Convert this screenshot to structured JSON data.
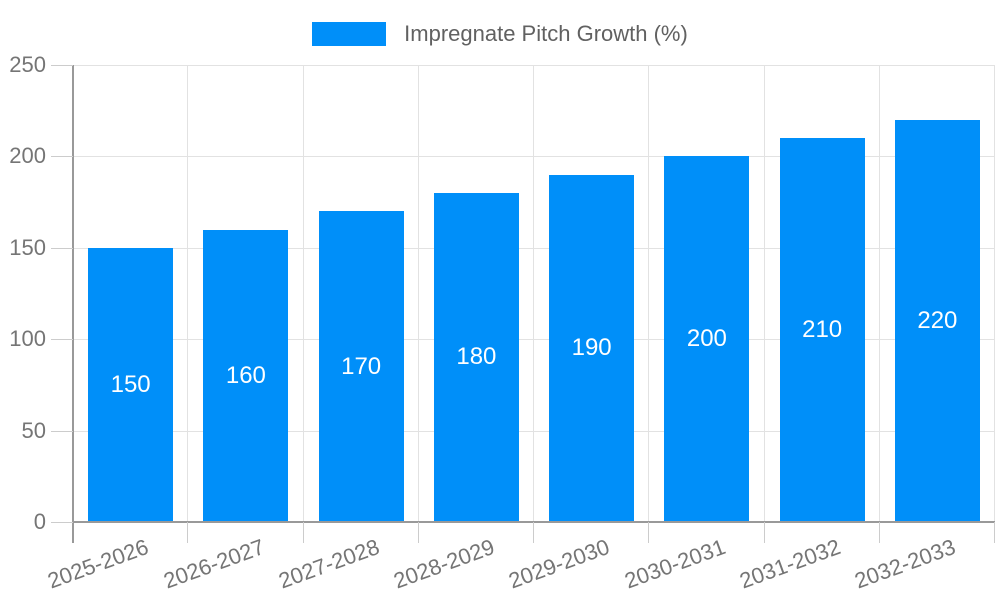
{
  "chart_data": {
    "type": "bar",
    "legend_label": "Impregnate Pitch Growth (%)",
    "categories": [
      "2025-2026",
      "2026-2027",
      "2027-2028",
      "2028-2029",
      "2029-2030",
      "2030-2031",
      "2031-2032",
      "2032-2033"
    ],
    "values": [
      150,
      160,
      170,
      180,
      190,
      200,
      210,
      220
    ],
    "value_labels": [
      "150",
      "160",
      "170",
      "180",
      "190",
      "200",
      "210",
      "220"
    ],
    "ylim": [
      0,
      250
    ],
    "yticks": [
      0,
      50,
      100,
      150,
      200,
      250
    ],
    "ytick_labels": [
      "0",
      "50",
      "100",
      "150",
      "200",
      "250"
    ],
    "grid": "on",
    "legend_position": "top-center",
    "xlabel": "",
    "ylabel": "",
    "title": "",
    "colors": {
      "bar": "#008FF9",
      "axis": "#999999",
      "grid": "#e2e2e2",
      "tick": "#cccccc",
      "axis_text": "#757575",
      "legend_text": "#616161",
      "value_text": "#ffffff",
      "background": "#ffffff"
    }
  }
}
